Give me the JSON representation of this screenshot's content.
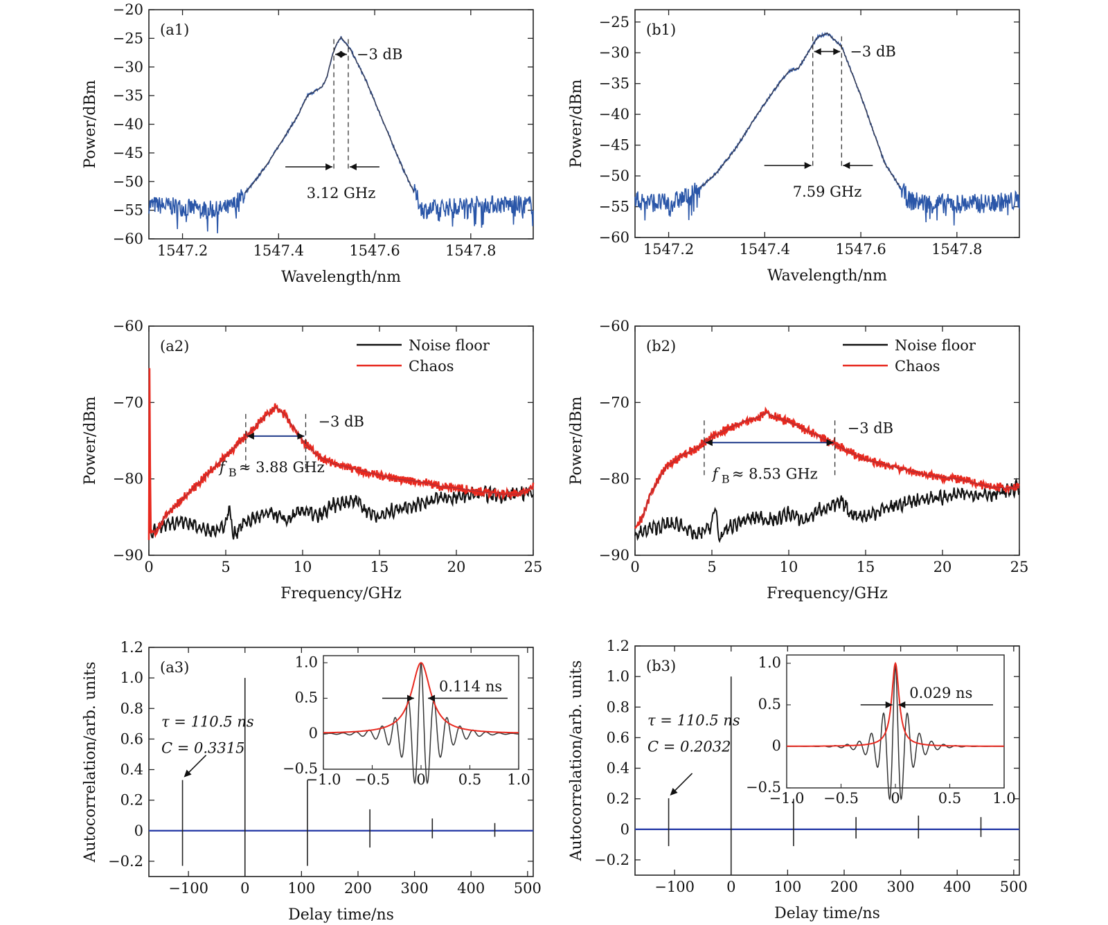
{
  "chart_data": [
    {
      "id": "a1",
      "panel_label": "(a1)",
      "type": "line",
      "xlabel": "Wavelength/nm",
      "ylabel": "Power/dBm",
      "xlim": [
        1547.13,
        1547.93
      ],
      "ylim": [
        -60,
        -20
      ],
      "xticks": [
        1547.2,
        1547.4,
        1547.6,
        1547.8
      ],
      "xtick_labels": [
        "1547.2",
        "1547.4",
        "1547.6",
        "1547.8"
      ],
      "yticks": [
        -60,
        -55,
        -50,
        -45,
        -40,
        -35,
        -30,
        -25,
        -20
      ],
      "ytick_labels": [
        "−60",
        "−55",
        "−50",
        "−45",
        "−40",
        "−35",
        "−30",
        "−25",
        "−20"
      ],
      "series": [
        {
          "color": "#2a56a8",
          "x": [
            1547.13,
            1547.2,
            1547.27,
            1547.3,
            1547.32,
            1547.35,
            1547.38,
            1547.41,
            1547.44,
            1547.46,
            1547.48,
            1547.49,
            1547.5,
            1547.51,
            1547.52,
            1547.53,
            1547.55,
            1547.58,
            1547.62,
            1547.66,
            1547.7,
            1547.75,
            1547.8,
            1547.93
          ],
          "y": [
            -54,
            -54.5,
            -55,
            -54.5,
            -53,
            -50,
            -46.5,
            -42.5,
            -38.5,
            -35,
            -34,
            -33.5,
            -32,
            -28.5,
            -26,
            -24.8,
            -27,
            -32,
            -40,
            -48,
            -55,
            -54.5,
            -54,
            -54
          ]
        }
      ],
      "annotations": {
        "db": "−3 dB",
        "width": "3.12 GHz"
      },
      "markers_x": [
        1547.515,
        1547.545
      ]
    },
    {
      "id": "b1",
      "panel_label": "(b1)",
      "type": "line",
      "xlabel": "Wavelength/nm",
      "ylabel": "Power/dBm",
      "xlim": [
        1547.13,
        1547.93
      ],
      "ylim": [
        -60,
        -23
      ],
      "xticks": [
        1547.2,
        1547.4,
        1547.6,
        1547.8
      ],
      "xtick_labels": [
        "1547.2",
        "1547.4",
        "1547.6",
        "1547.8"
      ],
      "yticks": [
        -60,
        -55,
        -50,
        -45,
        -40,
        -35,
        -30,
        -25
      ],
      "ytick_labels": [
        "−60",
        "−55",
        "−50",
        "−45",
        "−40",
        "−35",
        "−30",
        "−25"
      ],
      "series": [
        {
          "color": "#2a56a8",
          "x": [
            1547.13,
            1547.2,
            1547.25,
            1547.3,
            1547.34,
            1547.38,
            1547.42,
            1547.45,
            1547.47,
            1547.49,
            1547.51,
            1547.53,
            1547.56,
            1547.6,
            1547.65,
            1547.7,
            1547.75,
            1547.85,
            1547.93
          ],
          "y": [
            -54,
            -54.5,
            -53,
            -49.5,
            -45.5,
            -40.5,
            -36,
            -33,
            -32.5,
            -30,
            -27.5,
            -26.8,
            -29,
            -37,
            -48,
            -54,
            -54.5,
            -54.5,
            -54
          ]
        }
      ],
      "annotations": {
        "db": "−3 dB",
        "width": "7.59 GHz"
      },
      "markers_x": [
        1547.5,
        1547.56
      ]
    },
    {
      "id": "a2",
      "panel_label": "(a2)",
      "type": "line",
      "xlabel": "Frequency/GHz",
      "ylabel": "Power/dBm",
      "xlim": [
        0,
        25
      ],
      "ylim": [
        -90,
        -60
      ],
      "xticks": [
        0,
        5,
        10,
        15,
        20,
        25
      ],
      "xtick_labels": [
        "0",
        "5",
        "10",
        "15",
        "20",
        "25"
      ],
      "yticks": [
        -90,
        -80,
        -70,
        -60
      ],
      "ytick_labels": [
        "−90",
        "−80",
        "−70",
        "−60"
      ],
      "legend": [
        "Noise floor",
        "Chaos"
      ],
      "series": [
        {
          "name": "Noise floor",
          "color": "#111111",
          "x": [
            0,
            1,
            2,
            3,
            4,
            5,
            5.2,
            5.5,
            6,
            7,
            8,
            9,
            10,
            11,
            12,
            13,
            13.5,
            14,
            15,
            16,
            17,
            18,
            19,
            20,
            21,
            22,
            23,
            24,
            25
          ],
          "y": [
            -87,
            -86,
            -85.5,
            -86,
            -87,
            -86,
            -83.5,
            -87.5,
            -86,
            -85,
            -84.5,
            -85.5,
            -84,
            -85,
            -83.5,
            -83,
            -82.5,
            -84,
            -85,
            -84,
            -83.5,
            -83,
            -82.5,
            -82.5,
            -82,
            -82,
            -82.2,
            -82,
            -81.5
          ]
        },
        {
          "name": "Chaos",
          "color": "#e8281e",
          "x": [
            0,
            0.05,
            0.1,
            0.5,
            1,
            2,
            3,
            4,
            5,
            6,
            7,
            7.5,
            8,
            8.3,
            8.8,
            9.5,
            10,
            11,
            12,
            13,
            14,
            15,
            16,
            17,
            18,
            19,
            20,
            21,
            22,
            23,
            24,
            25
          ],
          "y": [
            -88,
            -61,
            -87,
            -87,
            -85,
            -83,
            -81,
            -79,
            -77,
            -75,
            -73,
            -72,
            -71,
            -70.6,
            -71.5,
            -73.5,
            -75,
            -77,
            -78,
            -78.5,
            -79,
            -79.5,
            -80,
            -80.2,
            -80.5,
            -81,
            -81.2,
            -81.5,
            -81.8,
            -82,
            -82,
            -81
          ]
        }
      ],
      "annotations": {
        "db": "−3 dB",
        "fb_symbol": "f",
        "fb_subscript": "B",
        "fb_value": "≈ 3.88 GHz"
      },
      "markers_x": [
        6.3,
        10.2
      ]
    },
    {
      "id": "b2",
      "panel_label": "(b2)",
      "type": "line",
      "xlabel": "Frequency/GHz",
      "ylabel": "Power/dBm",
      "xlim": [
        0,
        25
      ],
      "ylim": [
        -90,
        -60
      ],
      "xticks": [
        0,
        5,
        10,
        15,
        20,
        25
      ],
      "xtick_labels": [
        "0",
        "5",
        "10",
        "15",
        "20",
        "25"
      ],
      "yticks": [
        -90,
        -80,
        -70,
        -60
      ],
      "ytick_labels": [
        "−90",
        "−80",
        "−70",
        "−60"
      ],
      "legend": [
        "Noise floor",
        "Chaos"
      ],
      "series": [
        {
          "name": "Noise floor",
          "color": "#111111",
          "x": [
            0,
            1,
            2,
            3,
            4,
            5,
            5.2,
            5.5,
            6,
            7,
            8,
            9,
            10,
            11,
            12,
            13,
            13.5,
            14,
            15,
            16,
            17,
            18,
            19,
            20,
            21,
            22,
            23,
            24,
            25
          ],
          "y": [
            -87.5,
            -86.5,
            -86,
            -86,
            -87.5,
            -86,
            -83.5,
            -88,
            -86.5,
            -85.5,
            -85,
            -85.5,
            -84.5,
            -85.5,
            -84,
            -83.5,
            -83,
            -84.5,
            -85,
            -84,
            -83.5,
            -83,
            -82.5,
            -82.5,
            -82,
            -82,
            -82,
            -81.8,
            -81
          ]
        },
        {
          "name": "Chaos",
          "color": "#e8281e",
          "x": [
            0,
            0.5,
            1,
            2,
            3,
            4,
            5,
            6,
            7,
            8,
            8.5,
            9,
            10,
            11,
            12,
            13,
            14,
            15,
            16,
            17,
            18,
            19,
            20,
            21,
            22,
            23,
            24,
            25
          ],
          "y": [
            -86.5,
            -85,
            -82,
            -78.5,
            -77,
            -76,
            -74.5,
            -73.5,
            -72.5,
            -72,
            -71.3,
            -71.8,
            -72.5,
            -73.5,
            -74.5,
            -75.5,
            -76.5,
            -77.5,
            -78,
            -78.5,
            -79,
            -79.5,
            -79.8,
            -80,
            -80.5,
            -81,
            -81.2,
            -81
          ]
        }
      ],
      "annotations": {
        "db": "−3 dB",
        "fb_symbol": "f",
        "fb_subscript": "B",
        "fb_value": "≈ 8.53 GHz"
      },
      "markers_x": [
        4.5,
        13
      ]
    },
    {
      "id": "a3",
      "panel_label": "(a3)",
      "type": "line",
      "xlabel": "Delay time/ns",
      "ylabel": "Autocorrelation/arb. units",
      "xlim": [
        -170,
        510
      ],
      "ylim": [
        -0.3,
        1.2
      ],
      "xticks": [
        -100,
        0,
        100,
        200,
        300,
        400,
        500
      ],
      "xtick_labels": [
        "−100",
        "0",
        "100",
        "200",
        "300",
        "400",
        "500"
      ],
      "yticks": [
        -0.2,
        0,
        0.2,
        0.4,
        0.6,
        0.8,
        1.0,
        1.2
      ],
      "ytick_labels": [
        "−0.2",
        "0",
        "0.2",
        "0.4",
        "0.6",
        "0.8",
        "1.0",
        "1.2"
      ],
      "spikes": [
        {
          "x": -110.5,
          "top": 0.3315,
          "bottom": -0.23
        },
        {
          "x": 0,
          "top": 1.0,
          "bottom": -0.3
        },
        {
          "x": 110.5,
          "top": 0.33,
          "bottom": -0.23
        },
        {
          "x": 221,
          "top": 0.14,
          "bottom": -0.11
        },
        {
          "x": 331.5,
          "top": 0.08,
          "bottom": -0.05
        },
        {
          "x": 442,
          "top": 0.05,
          "bottom": -0.04
        }
      ],
      "baseline_color": "#2a3ea8",
      "annotations": {
        "tau": "τ = 110.5 ns",
        "c": "C = 0.3315"
      },
      "inset": {
        "xlim": [
          -1.0,
          1.0
        ],
        "ylim": [
          -0.5,
          1.1
        ],
        "xticks": [
          -1.0,
          -0.5,
          0,
          0.5,
          1.0
        ],
        "xtick_labels": [
          "−1.0",
          "−0.5",
          "0",
          "0.5",
          "1.0"
        ],
        "yticks": [
          -0.5,
          0,
          0.5,
          1.0
        ],
        "ytick_labels": [
          "−0.5",
          "0",
          "0.5",
          "1.0"
        ],
        "width": 0.114,
        "width_label": "0.114 ns",
        "envelope_width": 0.26,
        "osc_freq": 7.5,
        "osc_decay": 0.18,
        "envelope_color": "#e8281e",
        "trace_color": "#333333"
      }
    },
    {
      "id": "b3",
      "panel_label": "(b3)",
      "type": "line",
      "xlabel": "Delay time/ns",
      "ylabel": "Autocorrelation/arb. units",
      "xlim": [
        -170,
        510
      ],
      "ylim": [
        -0.3,
        1.2
      ],
      "xticks": [
        -100,
        0,
        100,
        200,
        300,
        400,
        500
      ],
      "xtick_labels": [
        "−100",
        "0",
        "100",
        "200",
        "300",
        "400",
        "500"
      ],
      "yticks": [
        -0.2,
        0,
        0.2,
        0.4,
        0.6,
        0.8,
        1.0,
        1.2
      ],
      "ytick_labels": [
        "−0.2",
        "0",
        "0.2",
        "0.4",
        "0.6",
        "0.8",
        "1.0",
        "1.2"
      ],
      "spikes": [
        {
          "x": -110.5,
          "top": 0.2032,
          "bottom": -0.11
        },
        {
          "x": 0,
          "top": 1.0,
          "bottom": -0.3
        },
        {
          "x": 110.5,
          "top": 0.2,
          "bottom": -0.11
        },
        {
          "x": 221,
          "top": 0.08,
          "bottom": -0.06
        },
        {
          "x": 331.5,
          "top": 0.09,
          "bottom": -0.06
        },
        {
          "x": 442,
          "top": 0.08,
          "bottom": -0.05
        }
      ],
      "baseline_color": "#2a3ea8",
      "annotations": {
        "tau": "τ = 110.5 ns",
        "c": "C = 0.2032"
      },
      "inset": {
        "xlim": [
          -1.0,
          1.0
        ],
        "ylim": [
          -0.5,
          1.1
        ],
        "xticks": [
          -1.0,
          -0.5,
          0,
          0.5,
          1.0
        ],
        "xtick_labels": [
          "−1.0",
          "−0.5",
          "0",
          "0.5",
          "1.0"
        ],
        "yticks": [
          -0.5,
          0,
          0.5,
          1.0
        ],
        "ytick_labels": [
          "−0.5",
          "0",
          "0.5",
          "1.0"
        ],
        "width": 0.029,
        "width_label": "0.029 ns",
        "envelope_width": 0.09,
        "osc_freq": 9,
        "osc_decay": 0.12,
        "envelope_color": "#e8281e",
        "trace_color": "#333333"
      }
    }
  ]
}
